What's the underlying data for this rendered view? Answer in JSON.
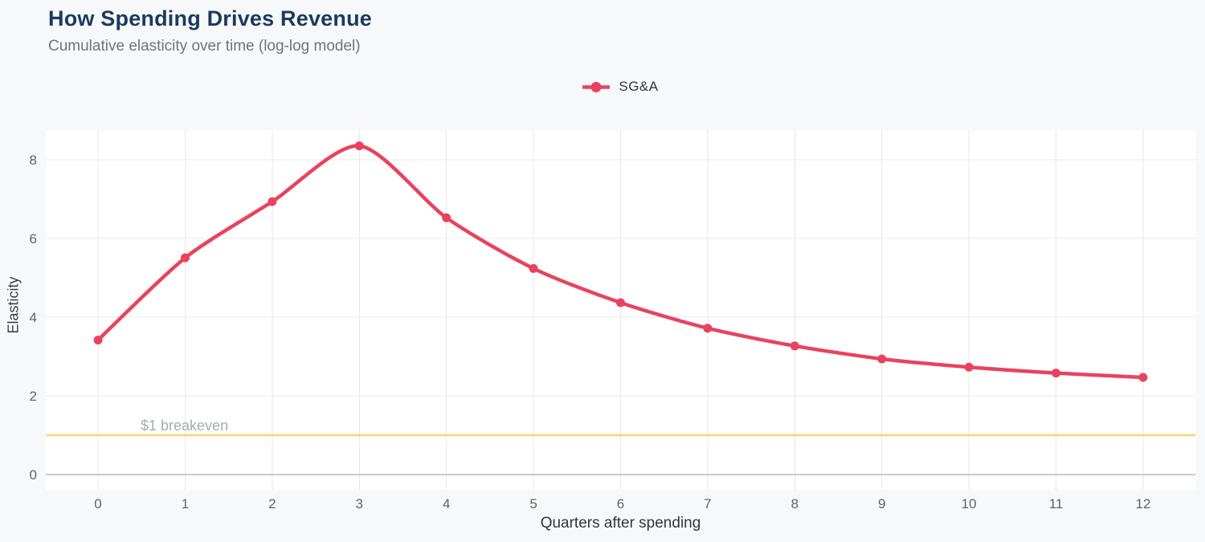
{
  "header": {
    "title": "How Spending Drives Revenue",
    "subtitle": "Cumulative elasticity over time (log-log model)"
  },
  "legend": {
    "items": [
      {
        "label": "SG&A",
        "color": "#e8435e"
      }
    ]
  },
  "axes": {
    "xlabel": "Quarters after spending",
    "ylabel": "Elasticity"
  },
  "colors": {
    "background": "#f7f8fa",
    "plot_background": "#ffffff",
    "grid": "#e8e8eb",
    "zero_line": "#c9c9ce",
    "series": "#e8435e",
    "reference_line": "#fcd172",
    "reference_label": "#a6abb1",
    "tick_text": "#5d636b",
    "title_text": "#1c3a5e",
    "subtitle_text": "#6e757c"
  },
  "chart_data": {
    "type": "line",
    "title": "How Spending Drives Revenue",
    "subtitle": "Cumulative elasticity over time (log-log model)",
    "xlabel": "Quarters after spending",
    "ylabel": "Elasticity",
    "x": [
      0,
      1,
      2,
      3,
      4,
      5,
      6,
      7,
      8,
      9,
      10,
      11,
      12
    ],
    "series": [
      {
        "name": "SG&A",
        "color": "#e8435e",
        "values": [
          3.42,
          5.51,
          6.94,
          8.36,
          6.53,
          5.24,
          4.37,
          3.72,
          3.27,
          2.94,
          2.73,
          2.58,
          2.47
        ]
      }
    ],
    "reference_line": {
      "value": 1,
      "label": "$1 breakeven",
      "color": "#fcd172"
    },
    "xticks": [
      0,
      1,
      2,
      3,
      4,
      5,
      6,
      7,
      8,
      9,
      10,
      11,
      12
    ],
    "yticks": [
      0,
      2,
      4,
      6,
      8
    ],
    "xlim": [
      -0.6,
      12.6
    ],
    "ylim": [
      -0.39,
      8.76
    ],
    "grid": true,
    "legend_position": "top-center"
  }
}
